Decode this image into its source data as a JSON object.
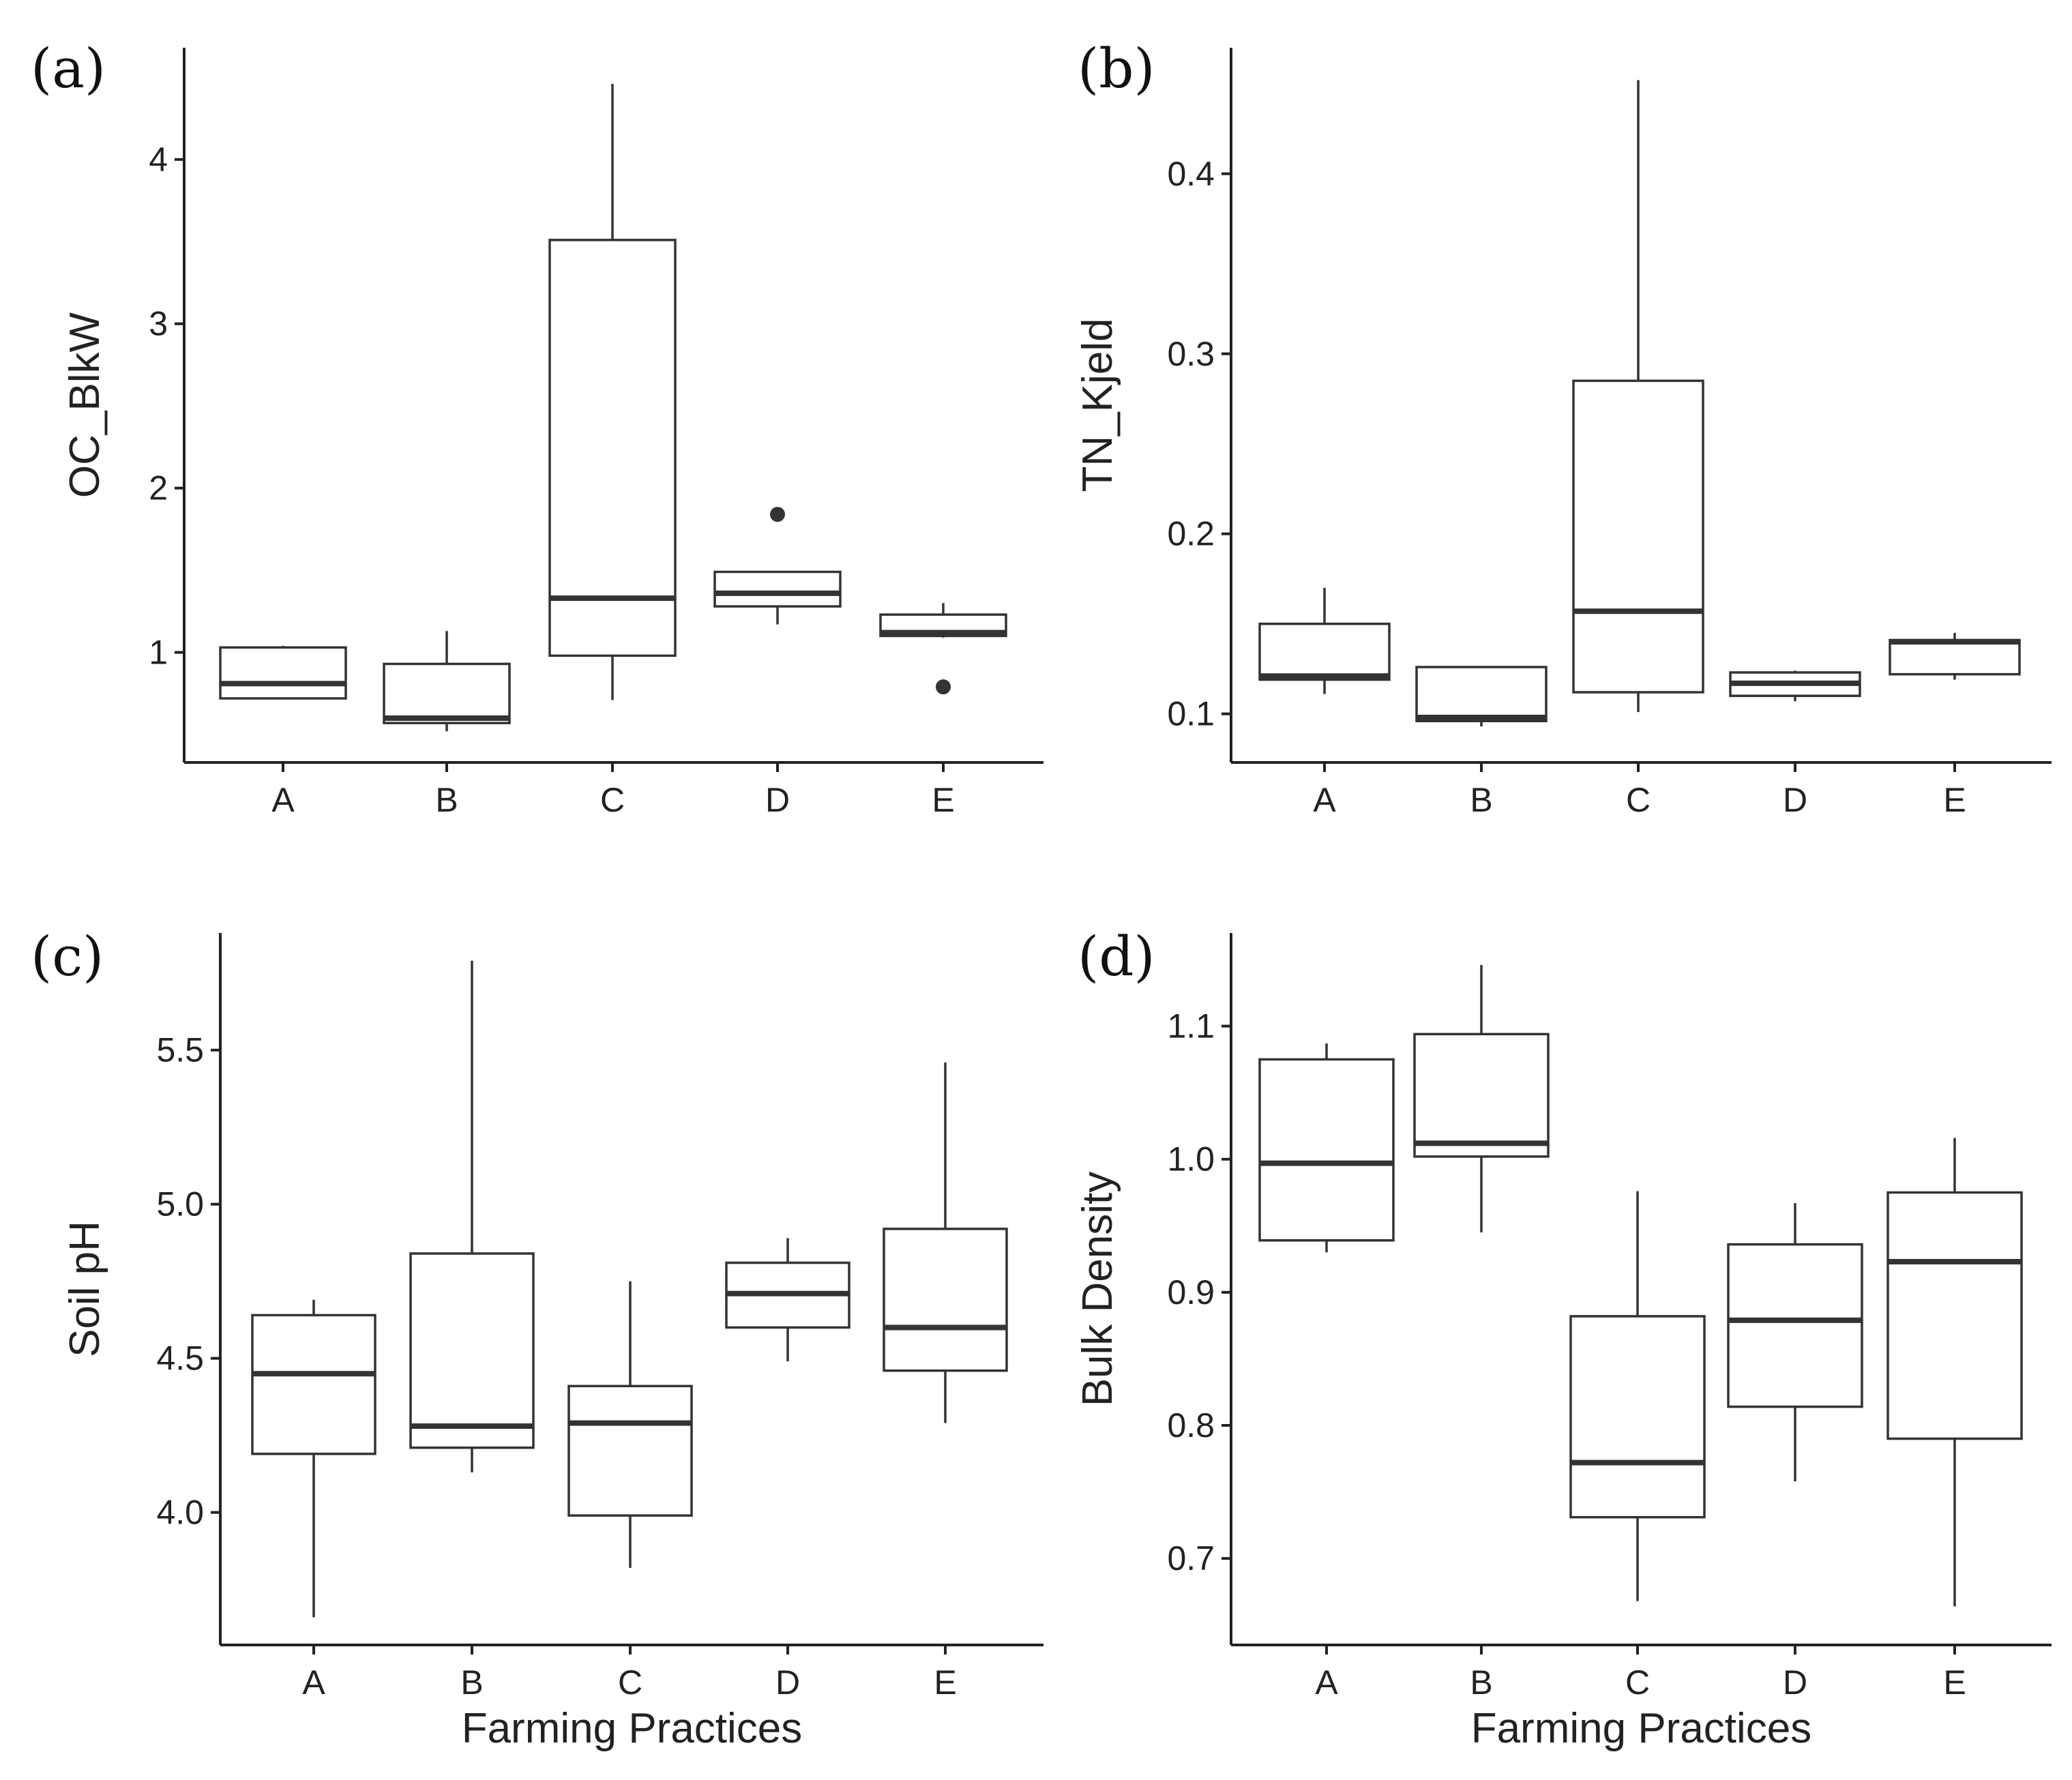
{
  "chart_data": [
    {
      "type": "boxplot",
      "panel_label": "(a)",
      "title": "",
      "xlabel": "",
      "ylabel": "OC_BlkW",
      "categories": [
        "A",
        "B",
        "C",
        "D",
        "E"
      ],
      "ylim": [
        0.33,
        4.68
      ],
      "yticks": [
        1,
        2,
        3,
        4
      ],
      "ytick_labels": [
        "1",
        "2",
        "3",
        "4"
      ],
      "boxes": [
        {
          "category": "A",
          "whisker_low": 0.72,
          "q1": 0.72,
          "median": 0.81,
          "q3": 1.03,
          "whisker_high": 1.04,
          "outliers": []
        },
        {
          "category": "B",
          "whisker_low": 0.52,
          "q1": 0.57,
          "median": 0.6,
          "q3": 0.93,
          "whisker_high": 1.13,
          "outliers": []
        },
        {
          "category": "C",
          "whisker_low": 0.71,
          "q1": 0.98,
          "median": 1.33,
          "q3": 3.51,
          "whisker_high": 4.46,
          "outliers": []
        },
        {
          "category": "D",
          "whisker_low": 1.17,
          "q1": 1.28,
          "median": 1.36,
          "q3": 1.49,
          "whisker_high": 1.49,
          "outliers": [
            1.84
          ]
        },
        {
          "category": "E",
          "whisker_low": 1.09,
          "q1": 1.1,
          "median": 1.12,
          "q3": 1.23,
          "whisker_high": 1.3,
          "outliers": [
            0.79
          ]
        }
      ]
    },
    {
      "type": "boxplot",
      "panel_label": "(b)",
      "title": "",
      "xlabel": "",
      "ylabel": "TN_Kjeld",
      "categories": [
        "A",
        "B",
        "C",
        "D",
        "E"
      ],
      "ylim": [
        0.073,
        0.47
      ],
      "yticks": [
        0.1,
        0.2,
        0.3,
        0.4
      ],
      "ytick_labels": [
        "0.1",
        "0.2",
        "0.3",
        "0.4"
      ],
      "boxes": [
        {
          "category": "A",
          "whisker_low": 0.111,
          "q1": 0.119,
          "median": 0.121,
          "q3": 0.15,
          "whisker_high": 0.17,
          "outliers": []
        },
        {
          "category": "B",
          "whisker_low": 0.093,
          "q1": 0.096,
          "median": 0.098,
          "q3": 0.126,
          "whisker_high": 0.126,
          "outliers": []
        },
        {
          "category": "C",
          "whisker_low": 0.101,
          "q1": 0.112,
          "median": 0.157,
          "q3": 0.285,
          "whisker_high": 0.452,
          "outliers": []
        },
        {
          "category": "D",
          "whisker_low": 0.107,
          "q1": 0.11,
          "median": 0.117,
          "q3": 0.123,
          "whisker_high": 0.124,
          "outliers": []
        },
        {
          "category": "E",
          "whisker_low": 0.119,
          "q1": 0.122,
          "median": 0.14,
          "q3": 0.141,
          "whisker_high": 0.145,
          "outliers": []
        }
      ]
    },
    {
      "type": "boxplot",
      "panel_label": "(c)",
      "title": "",
      "xlabel": "Farming Practices",
      "ylabel": "Soil pH",
      "categories": [
        "A",
        "B",
        "C",
        "D",
        "E"
      ],
      "ylim": [
        3.57,
        5.88
      ],
      "yticks": [
        4.0,
        4.5,
        5.0,
        5.5
      ],
      "ytick_labels": [
        "4.0",
        "4.5",
        "5.0",
        "5.5"
      ],
      "boxes": [
        {
          "category": "A",
          "whisker_low": 3.66,
          "q1": 4.19,
          "median": 4.45,
          "q3": 4.64,
          "whisker_high": 4.69,
          "outliers": []
        },
        {
          "category": "B",
          "whisker_low": 4.13,
          "q1": 4.21,
          "median": 4.28,
          "q3": 4.84,
          "whisker_high": 5.79,
          "outliers": []
        },
        {
          "category": "C",
          "whisker_low": 3.82,
          "q1": 3.99,
          "median": 4.29,
          "q3": 4.41,
          "whisker_high": 4.75,
          "outliers": []
        },
        {
          "category": "D",
          "whisker_low": 4.49,
          "q1": 4.6,
          "median": 4.71,
          "q3": 4.81,
          "whisker_high": 4.89,
          "outliers": []
        },
        {
          "category": "E",
          "whisker_low": 4.29,
          "q1": 4.46,
          "median": 4.6,
          "q3": 4.92,
          "whisker_high": 5.46,
          "outliers": []
        }
      ]
    },
    {
      "type": "boxplot",
      "panel_label": "(d)",
      "title": "",
      "xlabel": "Farming Practices",
      "ylabel": "Bulk Density",
      "categories": [
        "A",
        "B",
        "C",
        "D",
        "E"
      ],
      "ylim": [
        0.635,
        1.17
      ],
      "yticks": [
        0.7,
        0.8,
        0.9,
        1.0,
        1.1
      ],
      "ytick_labels": [
        "0.7",
        "0.8",
        "0.9",
        "1.0",
        "1.1"
      ],
      "boxes": [
        {
          "category": "A",
          "whisker_low": 0.93,
          "q1": 0.939,
          "median": 0.997,
          "q3": 1.075,
          "whisker_high": 1.087,
          "outliers": []
        },
        {
          "category": "B",
          "whisker_low": 0.945,
          "q1": 1.002,
          "median": 1.012,
          "q3": 1.094,
          "whisker_high": 1.146,
          "outliers": []
        },
        {
          "category": "C",
          "whisker_low": 0.668,
          "q1": 0.731,
          "median": 0.772,
          "q3": 0.882,
          "whisker_high": 0.976,
          "outliers": []
        },
        {
          "category": "D",
          "whisker_low": 0.758,
          "q1": 0.814,
          "median": 0.879,
          "q3": 0.936,
          "whisker_high": 0.967,
          "outliers": []
        },
        {
          "category": "E",
          "whisker_low": 0.664,
          "q1": 0.79,
          "median": 0.923,
          "q3": 0.975,
          "whisker_high": 1.016,
          "outliers": []
        }
      ]
    }
  ]
}
